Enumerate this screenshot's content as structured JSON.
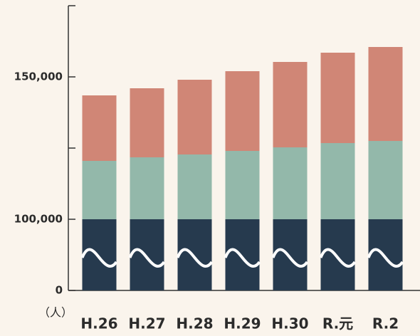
{
  "chart_data": {
    "type": "stacked_bar",
    "y_label": "（人）",
    "categories": [
      "H.26",
      "H.27",
      "H.28",
      "H.29",
      "H.30",
      "R.元",
      "R.2"
    ],
    "series": [
      {
        "color": "#263a4e",
        "values": [
          100000,
          100000,
          100000,
          100000,
          100000,
          100000,
          100000
        ]
      },
      {
        "color": "#93b8aa",
        "values": [
          20500,
          21750,
          22750,
          24000,
          25250,
          26750,
          27500
        ]
      },
      {
        "color": "#d08676",
        "values": [
          23000,
          24250,
          26250,
          28000,
          30000,
          31750,
          33000
        ]
      }
    ],
    "ylim": [
      0,
      175000
    ],
    "yticks": [
      0,
      {
        "value": 100000,
        "label": "100,000"
      },
      {
        "value": 150000,
        "label": "150,000"
      }
    ],
    "minor_yticks": [
      125000
    ],
    "axis_break": true
  }
}
